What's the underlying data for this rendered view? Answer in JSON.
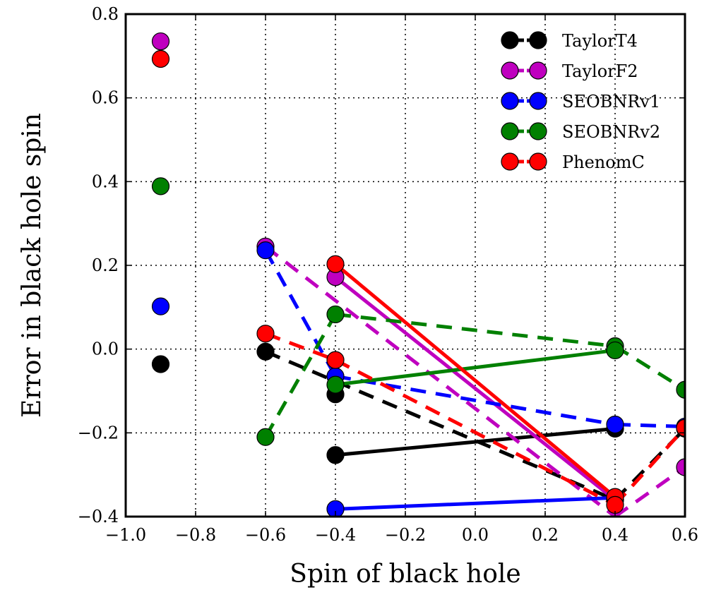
{
  "chart_data": {
    "type": "line",
    "title": "",
    "xlabel": "Spin of black hole",
    "ylabel": "Error in black hole spin",
    "xlim": [
      -1.0,
      0.6
    ],
    "ylim": [
      -0.4,
      0.8
    ],
    "xticks": [
      -1.0,
      -0.8,
      -0.6,
      -0.4,
      -0.2,
      0.0,
      0.2,
      0.4,
      0.6
    ],
    "xtick_labels": [
      "−1.0",
      "−0.8",
      "−0.6",
      "−0.4",
      "−0.2",
      "0.0",
      "0.2",
      "0.4",
      "0.6"
    ],
    "yticks": [
      -0.4,
      -0.2,
      0.0,
      0.2,
      0.4,
      0.6,
      0.8
    ],
    "ytick_labels": [
      "−0.4",
      "−0.2",
      "0.0",
      "0.2",
      "0.4",
      "0.6",
      "0.8"
    ],
    "grid": true,
    "legend_position": "top-right",
    "series": [
      {
        "name": "TaylorT4",
        "color": "#000000",
        "points": [
          [
            -0.9,
            -0.036
          ],
          [
            -0.6,
            -0.006
          ],
          [
            -0.4,
            -0.108
          ],
          [
            -0.4,
            -0.253
          ],
          [
            0.4,
            -0.19
          ],
          [
            0.4,
            -0.36
          ],
          [
            0.6,
            -0.19
          ]
        ],
        "segments": [
          {
            "from": [
              -0.6,
              -0.006
            ],
            "to": [
              0.4,
              -0.36
            ],
            "style": "dashed"
          },
          {
            "from": [
              0.4,
              -0.36
            ],
            "to": [
              0.6,
              -0.19
            ],
            "style": "dashed"
          },
          {
            "from": [
              -0.4,
              -0.253
            ],
            "to": [
              0.4,
              -0.19
            ],
            "style": "solid"
          }
        ]
      },
      {
        "name": "TaylorF2",
        "color": "#bf00bf",
        "points": [
          [
            -0.9,
            0.735
          ],
          [
            -0.6,
            0.245
          ],
          [
            -0.4,
            0.172
          ],
          [
            0.4,
            -0.36
          ],
          [
            0.6,
            -0.282
          ]
        ],
        "segments": [
          {
            "from": [
              -0.6,
              0.245
            ],
            "to": [
              0.4,
              -0.4
            ],
            "style": "dashed"
          },
          {
            "from": [
              0.4,
              -0.4
            ],
            "to": [
              0.6,
              -0.282
            ],
            "style": "dashed"
          },
          {
            "from": [
              -0.4,
              0.172
            ],
            "to": [
              0.4,
              -0.36
            ],
            "style": "solid"
          }
        ]
      },
      {
        "name": "SEOBNRv1",
        "color": "#0000ff",
        "points": [
          [
            -0.9,
            0.102
          ],
          [
            -0.6,
            0.236
          ],
          [
            -0.4,
            -0.065
          ],
          [
            -0.4,
            -0.382
          ],
          [
            0.4,
            -0.18
          ],
          [
            0.6,
            -0.185
          ]
        ],
        "segments": [
          {
            "from": [
              -0.6,
              0.236
            ],
            "to": [
              -0.4,
              -0.065
            ],
            "style": "dashed"
          },
          {
            "from": [
              -0.4,
              -0.065
            ],
            "to": [
              0.4,
              -0.18
            ],
            "style": "dashed"
          },
          {
            "from": [
              0.4,
              -0.18
            ],
            "to": [
              0.6,
              -0.185
            ],
            "style": "dashed"
          },
          {
            "from": [
              -0.4,
              -0.382
            ],
            "to": [
              0.4,
              -0.355
            ],
            "style": "solid"
          }
        ]
      },
      {
        "name": "SEOBNRv2",
        "color": "#008000",
        "points": [
          [
            -0.9,
            0.389
          ],
          [
            -0.6,
            -0.21
          ],
          [
            -0.4,
            0.083
          ],
          [
            -0.4,
            -0.085
          ],
          [
            0.4,
            0.007
          ],
          [
            0.4,
            -0.003
          ],
          [
            0.6,
            -0.097
          ]
        ],
        "segments": [
          {
            "from": [
              -0.6,
              -0.21
            ],
            "to": [
              -0.4,
              0.083
            ],
            "style": "dashed"
          },
          {
            "from": [
              -0.4,
              0.083
            ],
            "to": [
              0.4,
              0.007
            ],
            "style": "dashed"
          },
          {
            "from": [
              0.4,
              0.007
            ],
            "to": [
              0.6,
              -0.097
            ],
            "style": "dashed"
          },
          {
            "from": [
              -0.4,
              -0.085
            ],
            "to": [
              0.4,
              -0.003
            ],
            "style": "solid"
          }
        ]
      },
      {
        "name": "PhenomC",
        "color": "#ff0000",
        "points": [
          [
            -0.9,
            0.693
          ],
          [
            -0.6,
            0.037
          ],
          [
            -0.4,
            -0.026
          ],
          [
            -0.4,
            0.203
          ],
          [
            0.4,
            -0.353
          ],
          [
            0.4,
            -0.372
          ],
          [
            0.6,
            -0.188
          ]
        ],
        "segments": [
          {
            "from": [
              -0.6,
              0.037
            ],
            "to": [
              -0.4,
              -0.026
            ],
            "style": "dashed"
          },
          {
            "from": [
              -0.4,
              -0.026
            ],
            "to": [
              0.4,
              -0.372
            ],
            "style": "dashed"
          },
          {
            "from": [
              0.4,
              -0.372
            ],
            "to": [
              0.6,
              -0.188
            ],
            "style": "dashed"
          },
          {
            "from": [
              -0.4,
              0.203
            ],
            "to": [
              0.4,
              -0.353
            ],
            "style": "solid"
          }
        ]
      }
    ]
  }
}
